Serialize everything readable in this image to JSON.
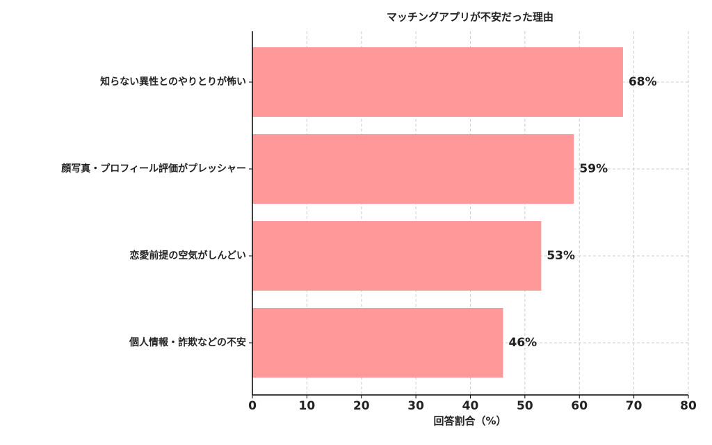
{
  "chart_data": {
    "type": "barh",
    "title": "マッチングアプリが不安だった理由",
    "categories": [
      "知らない異性とのやりとりが怖い",
      "顔写真・プロフィール評価がプレッシャー",
      "恋愛前提の空気がしんどい",
      "個人情報・詐欺などの不安"
    ],
    "values": [
      68,
      59,
      53,
      46
    ],
    "value_labels": [
      "68%",
      "59%",
      "53%",
      "46%"
    ],
    "color": "#ff9999",
    "xlabel": "回答割合（%）",
    "xlim": [
      0,
      80
    ],
    "xticks": [
      0,
      10,
      20,
      30,
      40,
      50,
      60,
      70,
      80
    ],
    "grid": true
  }
}
